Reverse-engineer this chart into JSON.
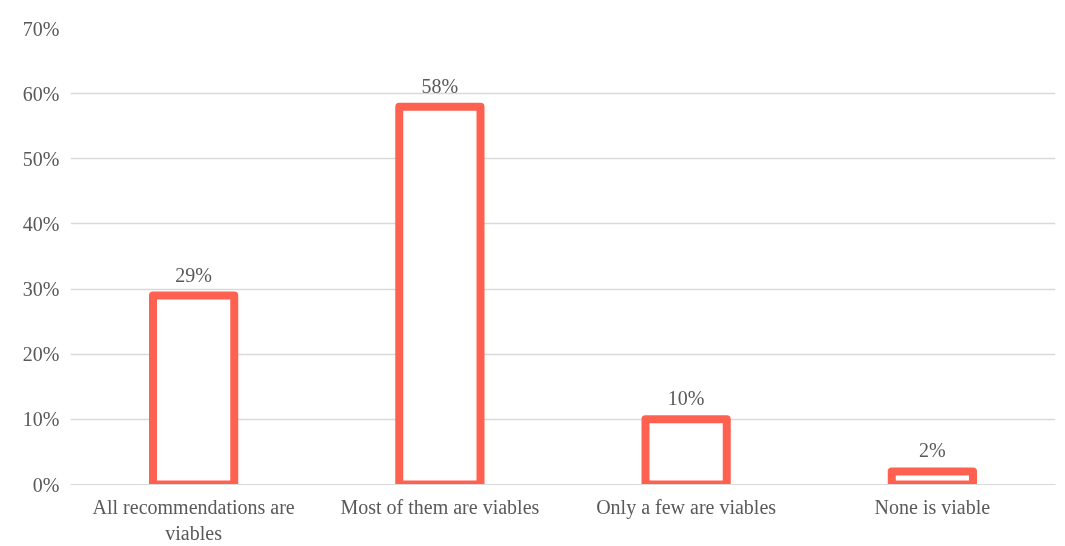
{
  "chart_data": {
    "type": "bar",
    "categories": [
      "All recommendations are viables",
      "Most of them are viables",
      "Only a few are viables",
      "None is viable"
    ],
    "values": [
      29,
      58,
      10,
      2
    ],
    "value_labels": [
      "29%",
      "58%",
      "10%",
      "2%"
    ],
    "color": "#ff6150",
    "ylim": [
      0,
      70
    ],
    "yticks": [
      {
        "value": 0,
        "label": "0%"
      },
      {
        "value": 10,
        "label": "10%"
      },
      {
        "value": 20,
        "label": "20%"
      },
      {
        "value": 30,
        "label": "30%"
      },
      {
        "value": 40,
        "label": "40%"
      },
      {
        "value": 50,
        "label": "50%"
      },
      {
        "value": 60,
        "label": "60%"
      },
      {
        "value": 70,
        "label": "70%"
      }
    ],
    "grid": "y"
  }
}
